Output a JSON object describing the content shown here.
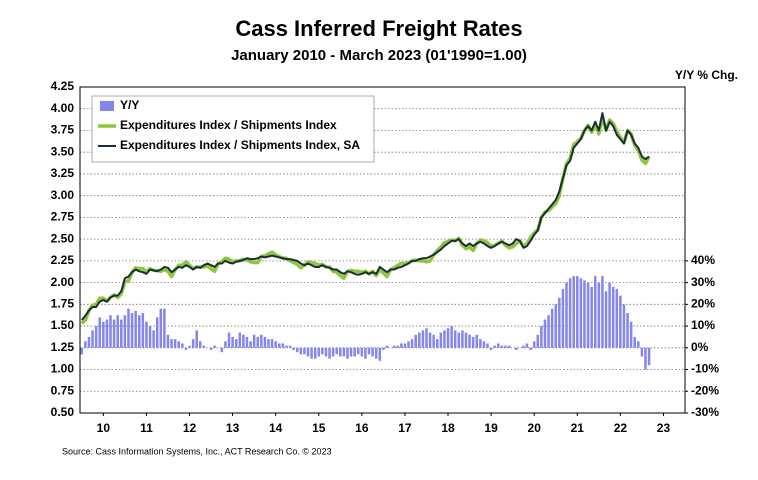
{
  "chart_data": {
    "type": "bar-line",
    "title": "Cass Inferred Freight Rates",
    "subtitle": "January 2010 - March 2023 (01'1990=1.00)",
    "y2_label": "Y/Y % Chg.",
    "source": "Source: Cass Information Systems, Inc., ACT Research Co. © 2023",
    "x": [
      0,
      1,
      2,
      3,
      4,
      5,
      6,
      7,
      8,
      9,
      10,
      11,
      12,
      13,
      14,
      15,
      16,
      17,
      18,
      19,
      20,
      21,
      22,
      23,
      24,
      25,
      26,
      27,
      28,
      29,
      30,
      31,
      32,
      33,
      34,
      35,
      36,
      37,
      38,
      39,
      40,
      41,
      42,
      43,
      44,
      45,
      46,
      47,
      48,
      49,
      50,
      51,
      52,
      53,
      54,
      55,
      56,
      57,
      58,
      59,
      60,
      61,
      62,
      63,
      64,
      65,
      66,
      67,
      68,
      69,
      70,
      71,
      72,
      73,
      74,
      75,
      76,
      77,
      78,
      79,
      80,
      81,
      82,
      83,
      84,
      85,
      86,
      87,
      88,
      89,
      90,
      91,
      92,
      93,
      94,
      95,
      96,
      97,
      98,
      99,
      100,
      101,
      102,
      103,
      104,
      105,
      106,
      107,
      108,
      109,
      110,
      111,
      112,
      113,
      114,
      115,
      116,
      117,
      118,
      119,
      120,
      121,
      122,
      123,
      124,
      125,
      126,
      127,
      128,
      129,
      130,
      131,
      132,
      133,
      134,
      135,
      136,
      137,
      138,
      139,
      140,
      141,
      142,
      143,
      144,
      145,
      146,
      147,
      148,
      149,
      150,
      151,
      152,
      153,
      154,
      155,
      156,
      157,
      158
    ],
    "xlim": [
      -0.5,
      168
    ],
    "xticks": [
      {
        "value": 6,
        "label": "10"
      },
      {
        "value": 18,
        "label": "11"
      },
      {
        "value": 30,
        "label": "12"
      },
      {
        "value": 42,
        "label": "13"
      },
      {
        "value": 54,
        "label": "14"
      },
      {
        "value": 66,
        "label": "15"
      },
      {
        "value": 78,
        "label": "16"
      },
      {
        "value": 90,
        "label": "17"
      },
      {
        "value": 102,
        "label": "18"
      },
      {
        "value": 114,
        "label": "19"
      },
      {
        "value": 126,
        "label": "20"
      },
      {
        "value": 138,
        "label": "21"
      },
      {
        "value": 150,
        "label": "22"
      },
      {
        "value": 162,
        "label": "23"
      }
    ],
    "ylim": [
      0.5,
      4.25
    ],
    "yticks": [
      {
        "value": 0.5,
        "label": "0.50"
      },
      {
        "value": 0.75,
        "label": "0.75"
      },
      {
        "value": 1,
        "label": "1.00"
      },
      {
        "value": 1.25,
        "label": "1.25"
      },
      {
        "value": 1.5,
        "label": "1.50"
      },
      {
        "value": 1.75,
        "label": "1.75"
      },
      {
        "value": 2,
        "label": "2.00"
      },
      {
        "value": 2.25,
        "label": "2.25"
      },
      {
        "value": 2.5,
        "label": "2.50"
      },
      {
        "value": 2.75,
        "label": "2.75"
      },
      {
        "value": 3,
        "label": "3.00"
      },
      {
        "value": 3.25,
        "label": "3.25"
      },
      {
        "value": 3.5,
        "label": "3.50"
      },
      {
        "value": 3.75,
        "label": "3.75"
      },
      {
        "value": 4,
        "label": "4.00"
      },
      {
        "value": 4.25,
        "label": "4.25"
      }
    ],
    "y2lim": [
      -30,
      120
    ],
    "y2ticks": [
      {
        "value": -30,
        "label": "-30%"
      },
      {
        "value": -20,
        "label": "-20%"
      },
      {
        "value": -10,
        "label": "-10%"
      },
      {
        "value": 0,
        "label": "0%"
      },
      {
        "value": 10,
        "label": "10%"
      },
      {
        "value": 20,
        "label": "20%"
      },
      {
        "value": 30,
        "label": "30%"
      },
      {
        "value": 40,
        "label": "40%"
      }
    ],
    "grid": true,
    "legend": "top-left",
    "series": [
      {
        "name": "Y/Y",
        "kind": "bar",
        "axis": "y2",
        "color": "#8585ec",
        "values": [
          -3,
          3,
          5,
          8,
          10,
          14,
          12,
          13,
          15,
          13,
          15,
          13,
          15,
          18,
          16,
          17,
          15,
          16,
          12,
          10,
          8,
          14,
          18,
          18,
          6,
          4,
          4,
          3,
          2,
          -1,
          1,
          4,
          8,
          3,
          1,
          0,
          -1,
          1,
          0,
          -2,
          3,
          7,
          5,
          4,
          7,
          6,
          5,
          3,
          6,
          5,
          6,
          5,
          4,
          4,
          3,
          2,
          2,
          1,
          1,
          -1,
          -2,
          -3,
          -3,
          -4,
          -5,
          -5,
          -4,
          -3,
          -4,
          -5,
          -4,
          -3,
          -4,
          -4,
          -5,
          -4,
          -4,
          -3,
          -4,
          -5,
          -3,
          -4,
          -5,
          -6,
          -1,
          1,
          0,
          1,
          1,
          2,
          2,
          3,
          4,
          6,
          7,
          8,
          9,
          7,
          6,
          4,
          7,
          8,
          9,
          10,
          8,
          7,
          8,
          7,
          6,
          5,
          6,
          4,
          3,
          2,
          -1,
          1,
          2,
          1,
          1,
          1,
          0,
          -1,
          0,
          1,
          2,
          -1,
          3,
          6,
          10,
          13,
          15,
          18,
          20,
          23,
          27,
          30,
          32,
          33,
          33,
          32,
          31,
          30,
          28,
          33,
          30,
          33,
          26,
          30,
          28,
          27,
          24,
          20,
          16,
          12,
          5,
          3,
          -4,
          -10,
          -8
        ]
      },
      {
        "name": "Expenditures Index / Shipments Index",
        "kind": "line",
        "color": "#8dc63f",
        "values": [
          1.53,
          1.57,
          1.68,
          1.74,
          1.75,
          1.82,
          1.82,
          1.79,
          1.83,
          1.86,
          1.83,
          1.87,
          2.01,
          2.02,
          2.12,
          2.17,
          2.16,
          2.16,
          2.12,
          2.16,
          2.14,
          2.14,
          2.13,
          2.15,
          2.13,
          2.07,
          2.15,
          2.2,
          2.2,
          2.24,
          2.2,
          2.16,
          2.18,
          2.18,
          2.18,
          2.19,
          2.16,
          2.13,
          2.22,
          2.24,
          2.28,
          2.27,
          2.24,
          2.25,
          2.25,
          2.27,
          2.26,
          2.24,
          2.23,
          2.23,
          2.3,
          2.31,
          2.33,
          2.35,
          2.32,
          2.3,
          2.28,
          2.28,
          2.25,
          2.23,
          2.21,
          2.17,
          2.2,
          2.24,
          2.23,
          2.22,
          2.2,
          2.21,
          2.18,
          2.18,
          2.13,
          2.12,
          2.08,
          2.05,
          2.13,
          2.14,
          2.13,
          2.13,
          2.12,
          2.13,
          2.1,
          2.13,
          2.08,
          2.15,
          2.11,
          2.07,
          2.15,
          2.17,
          2.2,
          2.22,
          2.22,
          2.23,
          2.25,
          2.26,
          2.25,
          2.25,
          2.24,
          2.25,
          2.32,
          2.37,
          2.41,
          2.46,
          2.47,
          2.49,
          2.48,
          2.51,
          2.43,
          2.39,
          2.41,
          2.37,
          2.45,
          2.49,
          2.48,
          2.46,
          2.42,
          2.43,
          2.45,
          2.48,
          2.43,
          2.4,
          2.41,
          2.45,
          2.48,
          2.42,
          2.45,
          2.52,
          2.57,
          2.61,
          2.75,
          2.81,
          2.83,
          2.87,
          2.91,
          3,
          3.2,
          3.37,
          3.43,
          3.59,
          3.62,
          3.66,
          3.75,
          3.81,
          3.73,
          3.82,
          3.71,
          3.9,
          3.75,
          3.87,
          3.83,
          3.74,
          3.67,
          3.61,
          3.75,
          3.71,
          3.58,
          3.52,
          3.41,
          3.37,
          3.45
        ]
      },
      {
        "name": "Expenditures Index / Shipments Index, SA",
        "kind": "line",
        "color": "#1b2d36",
        "values": [
          1.57,
          1.62,
          1.68,
          1.72,
          1.72,
          1.78,
          1.8,
          1.78,
          1.83,
          1.85,
          1.85,
          1.9,
          2.05,
          2.07,
          2.12,
          2.15,
          2.13,
          2.12,
          2.1,
          2.15,
          2.14,
          2.13,
          2.15,
          2.18,
          2.17,
          2.12,
          2.15,
          2.18,
          2.17,
          2.2,
          2.18,
          2.15,
          2.18,
          2.17,
          2.2,
          2.22,
          2.2,
          2.18,
          2.22,
          2.22,
          2.25,
          2.23,
          2.22,
          2.24,
          2.25,
          2.26,
          2.28,
          2.27,
          2.27,
          2.28,
          2.3,
          2.29,
          2.3,
          2.31,
          2.3,
          2.29,
          2.28,
          2.27,
          2.27,
          2.26,
          2.25,
          2.22,
          2.2,
          2.22,
          2.2,
          2.18,
          2.18,
          2.2,
          2.18,
          2.17,
          2.15,
          2.15,
          2.12,
          2.1,
          2.13,
          2.12,
          2.1,
          2.09,
          2.1,
          2.12,
          2.1,
          2.12,
          2.1,
          2.18,
          2.15,
          2.12,
          2.15,
          2.15,
          2.17,
          2.18,
          2.2,
          2.22,
          2.25,
          2.25,
          2.27,
          2.28,
          2.28,
          2.3,
          2.32,
          2.35,
          2.38,
          2.42,
          2.45,
          2.48,
          2.48,
          2.5,
          2.45,
          2.42,
          2.45,
          2.42,
          2.45,
          2.47,
          2.45,
          2.42,
          2.4,
          2.42,
          2.45,
          2.47,
          2.45,
          2.43,
          2.45,
          2.5,
          2.48,
          2.4,
          2.42,
          2.48,
          2.55,
          2.6,
          2.75,
          2.8,
          2.85,
          2.9,
          2.95,
          3.05,
          3.2,
          3.35,
          3.4,
          3.55,
          3.6,
          3.65,
          3.75,
          3.8,
          3.75,
          3.85,
          3.75,
          3.95,
          3.75,
          3.85,
          3.8,
          3.7,
          3.65,
          3.6,
          3.75,
          3.7,
          3.6,
          3.55,
          3.45,
          3.42,
          3.45
        ]
      }
    ]
  }
}
